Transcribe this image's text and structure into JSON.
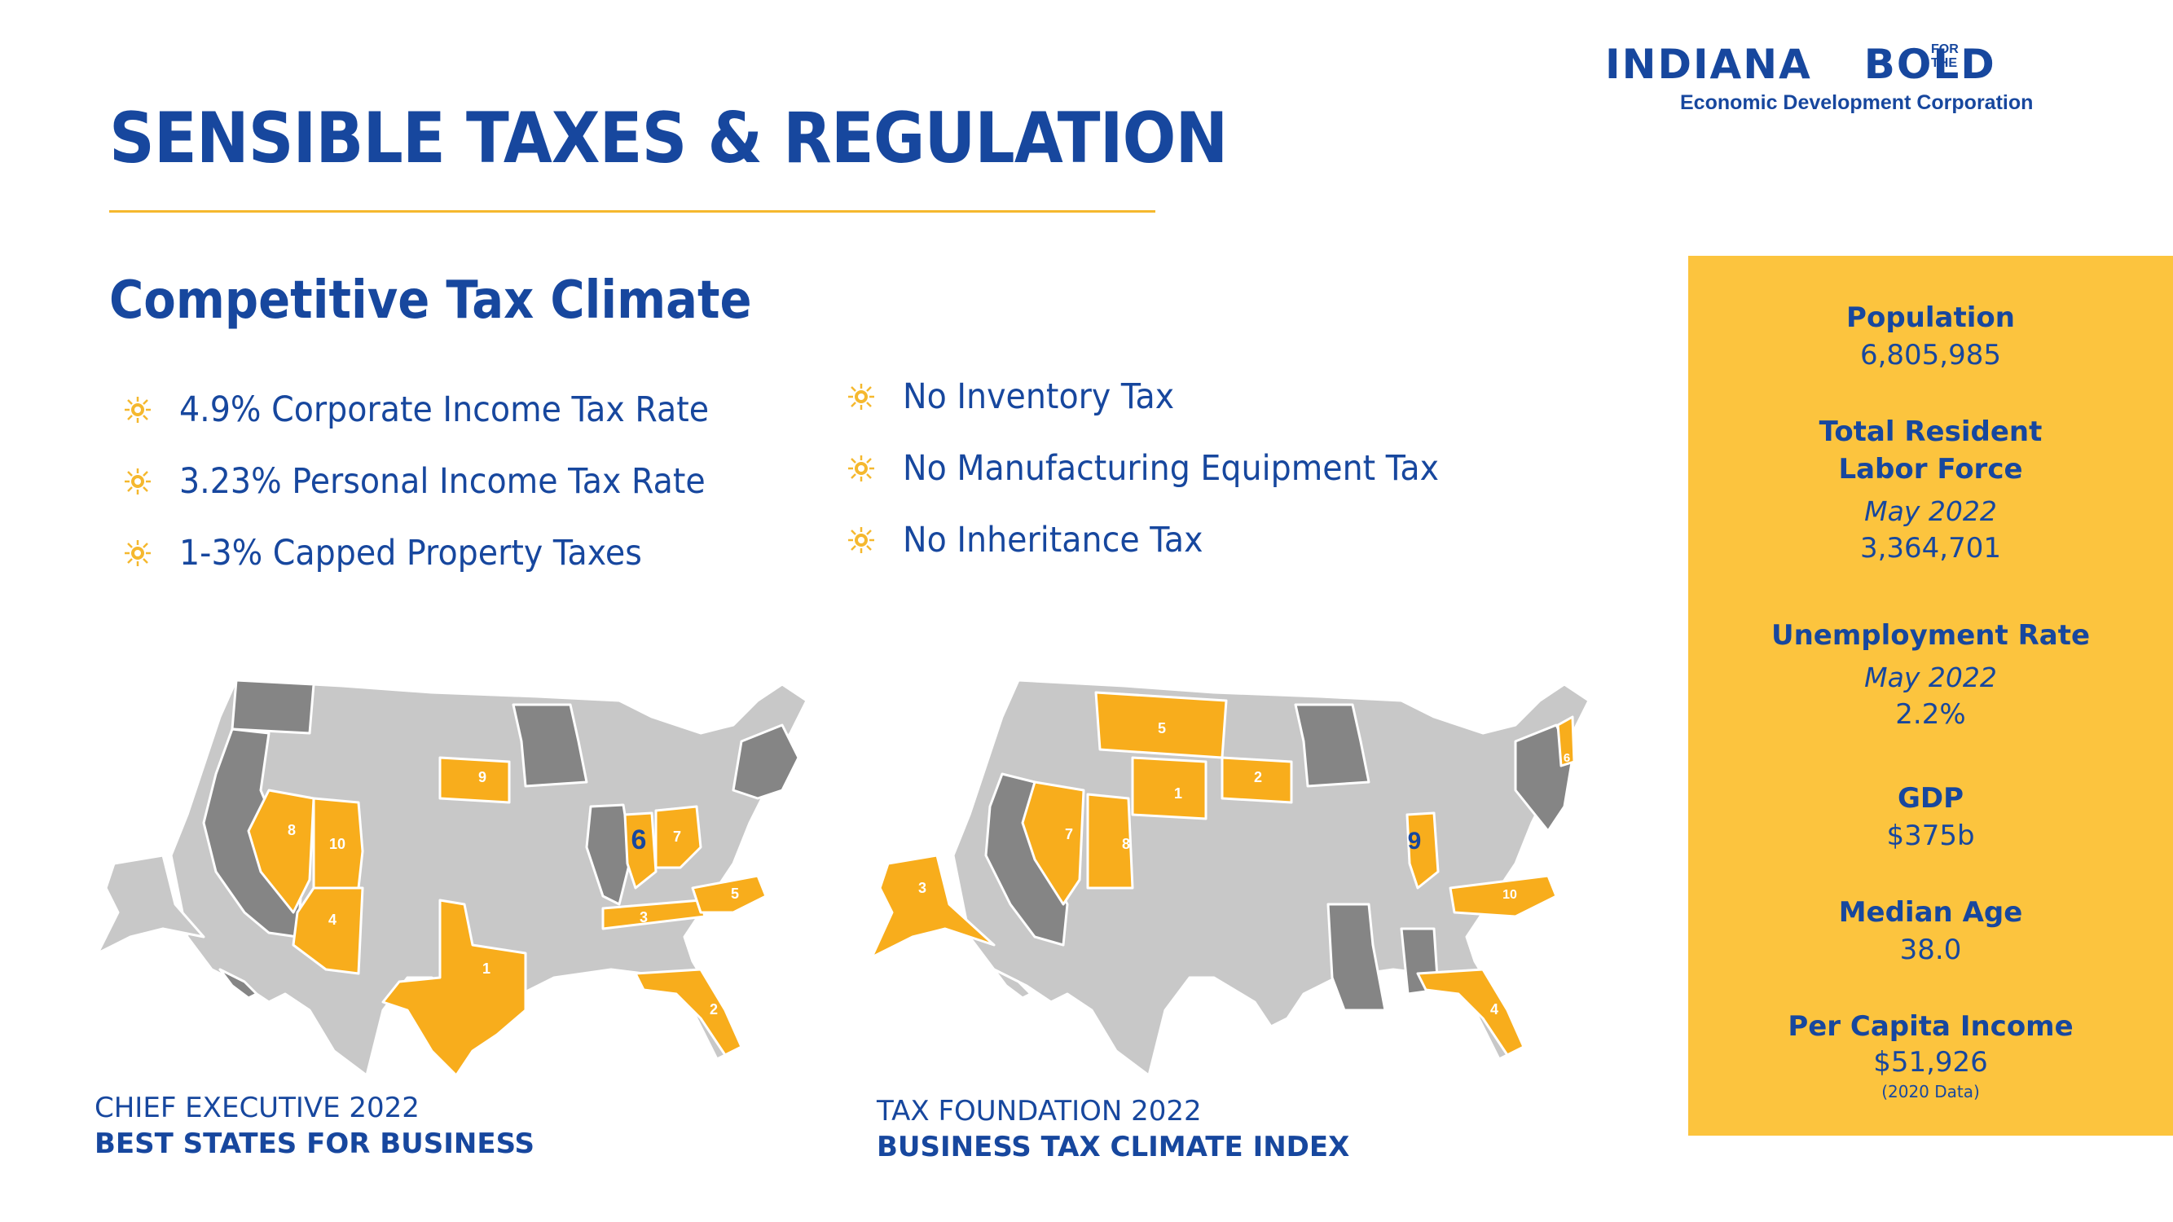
{
  "header": {
    "title": "SENSIBLE TAXES & REGULATION",
    "logo": {
      "main": "INDIANA",
      "for": "FOR",
      "the": "THE",
      "bold": "BOLD",
      "subtitle": "Economic Development Corporation"
    }
  },
  "section": {
    "subtitle": "Competitive Tax Climate",
    "left_bullets": [
      "4.9% Corporate Income Tax Rate",
      "3.23% Personal Income Tax Rate",
      " 1-3% Capped Property Taxes"
    ],
    "right_bullets": [
      "No Inventory Tax",
      "No Manufacturing Equipment Tax",
      "No Inheritance Tax"
    ]
  },
  "sidebar": {
    "population_label": "Population",
    "population_value": "6,805,985",
    "labor_label_1": "Total Resident",
    "labor_label_2": "Labor Force",
    "labor_date": "May 2022",
    "labor_value": "3,364,701",
    "unemp_label": "Unemployment  Rate",
    "unemp_date": "May 2022",
    "unemp_value": "2.2%",
    "gdp_label": "GDP",
    "gdp_value": "$375b",
    "age_label": "Median  Age",
    "age_value": "38.0",
    "income_label": "Per Capita Income",
    "income_value": "$51,926",
    "income_note": "(2020 Data)"
  },
  "map_left": {
    "caption_1": "CHIEF EXECUTIVE 2022",
    "caption_2": "BEST STATES FOR BUSINESS",
    "ranks": {
      "texas": "1",
      "florida": "2",
      "tennessee": "3",
      "arizona": "4",
      "north_carolina": "5",
      "indiana": "6",
      "ohio": "7",
      "nevada": "8",
      "south_dakota": "9",
      "utah": "10"
    }
  },
  "map_right": {
    "caption_1": "TAX FOUNDATION 2022",
    "caption_2": "BUSINESS TAX CLIMATE INDEX",
    "ranks": {
      "wyoming": "1",
      "south_dakota": "2",
      "alaska": "3",
      "florida": "4",
      "montana": "5",
      "new_hampshire": "6",
      "nevada": "7",
      "utah": "8",
      "indiana": "9",
      "north_carolina": "10"
    }
  },
  "colors": {
    "brand_blue": "#17479e",
    "gold": "#fcc43e",
    "state_light": "#c8c8c8",
    "state_dark": "#858585",
    "highlight": "#f8ad1c"
  }
}
